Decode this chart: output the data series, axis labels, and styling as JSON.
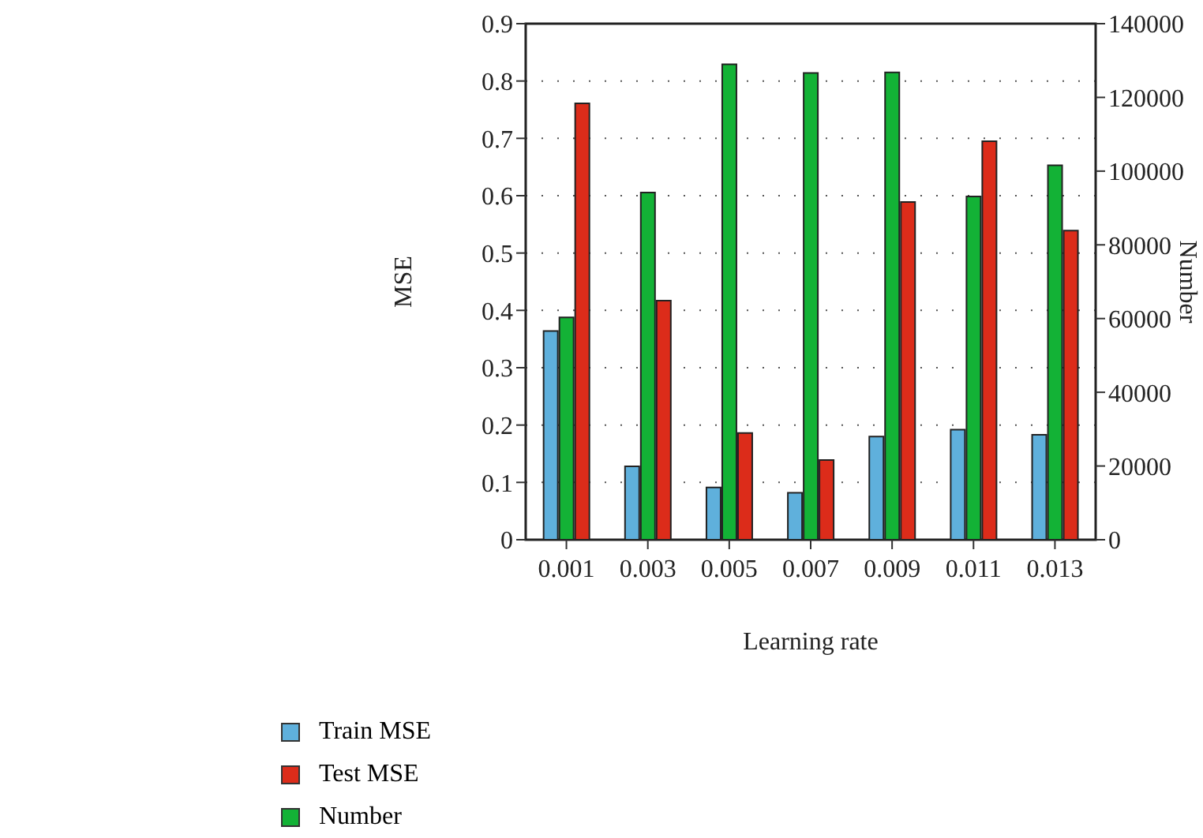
{
  "chart_data": {
    "type": "bar",
    "xlabel": "Learning rate",
    "ylabel": "MSE",
    "y2label": "Number",
    "categories": [
      "0.001",
      "0.003",
      "0.005",
      "0.007",
      "0.009",
      "0.011",
      "0.013"
    ],
    "series": [
      {
        "name": "Train MSE",
        "color": "#5fb0dc",
        "values": [
          0.364,
          0.128,
          0.091,
          0.082,
          0.18,
          0.192,
          0.183
        ]
      },
      {
        "name": "Number",
        "color": "#13b236",
        "axis": "y2",
        "values": [
          60300,
          94200,
          129000,
          126600,
          126800,
          93100,
          101600
        ]
      },
      {
        "name": "Test MSE",
        "color": "#dc2c1a",
        "values": [
          0.761,
          0.417,
          0.186,
          0.139,
          0.589,
          0.695,
          0.539
        ]
      }
    ],
    "ylim": [
      0,
      0.9
    ],
    "yticks": [
      0,
      0.1,
      0.2,
      0.3,
      0.4,
      0.5,
      0.6,
      0.7,
      0.8,
      0.9
    ],
    "y2lim": [
      0,
      140000
    ],
    "y2ticks": [
      0,
      20000,
      40000,
      60000,
      80000,
      100000,
      120000,
      140000
    ],
    "grid": "y",
    "legend": "bottom left"
  }
}
